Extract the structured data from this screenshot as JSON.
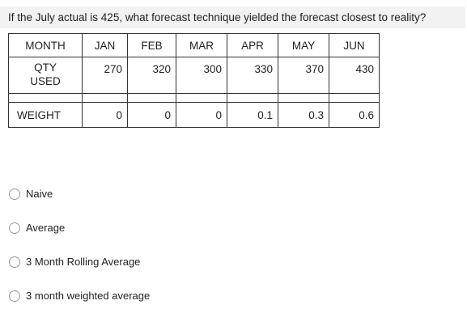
{
  "question": "If the July actual is 425, what forecast technique yielded the forecast closest to reality?",
  "table": {
    "header": [
      "MONTH",
      "JAN",
      "FEB",
      "MAR",
      "APR",
      "MAY",
      "JUN"
    ],
    "qty": {
      "label_line1": "QTY",
      "label_line2": "USED",
      "values": [
        "270",
        "320",
        "300",
        "330",
        "370",
        "430"
      ]
    },
    "weight": {
      "label": "WEIGHT",
      "values": [
        "0",
        "0",
        "0",
        "0.1",
        "0.3",
        "0.6"
      ]
    }
  },
  "options": [
    "Naive",
    "Average",
    "3 Month Rolling Average",
    "3 month weighted average"
  ],
  "colors": {
    "question_background": "#f2f2f2",
    "border": "#333333",
    "radio_border": "#9a9a9a"
  }
}
